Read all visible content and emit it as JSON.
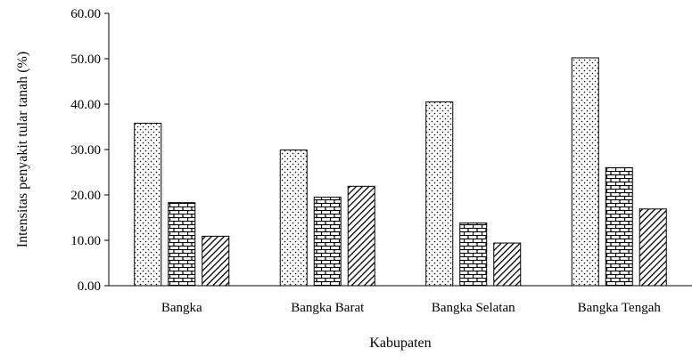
{
  "chart_data": {
    "type": "bar",
    "categories": [
      "Bangka",
      "Bangka Barat",
      "Bangka Selatan",
      "Bangka Tengah"
    ],
    "series": [
      {
        "pattern": "dots",
        "values": [
          35.8,
          29.9,
          40.5,
          50.2
        ]
      },
      {
        "pattern": "bricks",
        "values": [
          18.3,
          19.5,
          13.8,
          26.0
        ]
      },
      {
        "pattern": "diagonal-hatch",
        "values": [
          10.9,
          21.9,
          9.4,
          16.9
        ]
      }
    ],
    "title": "",
    "xlabel": "Kabupaten",
    "ylabel": "Intensitas penyakit tular tanah (%)",
    "ylim": [
      0,
      60
    ],
    "yticks": [
      "0.00",
      "10.00",
      "20.00",
      "30.00",
      "40.00",
      "50.00",
      "60.00"
    ],
    "grid": false,
    "legend": "none",
    "colors": {
      "stroke": "#000000",
      "fill": "#ffffff"
    }
  }
}
